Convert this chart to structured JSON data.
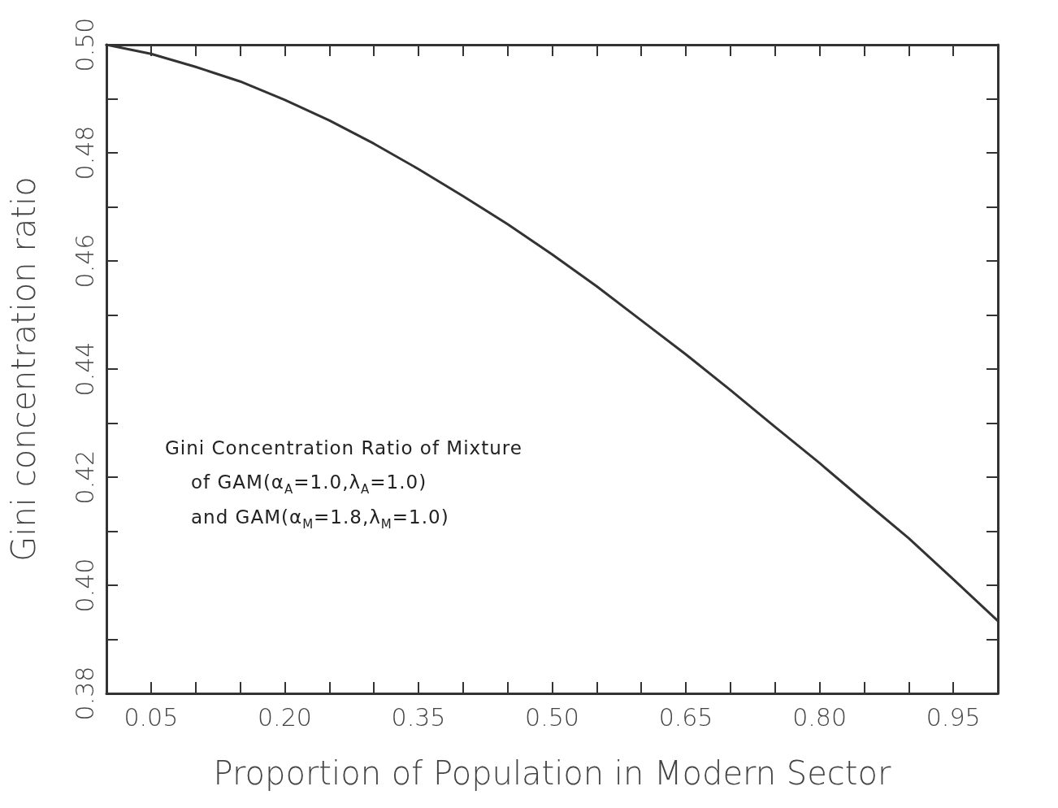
{
  "chart_data": {
    "type": "line",
    "xlabel": "Proportion of Population in Modern Sector",
    "ylabel": "Gini concentration ratio",
    "annotations": [
      "Gini Concentration Ratio of Mixture",
      "of GAM(α$_{A}$=1.0,λ$_{A}$=1.0)",
      "and GAM(α$_{M}$=1.8,λ$_{M}$=1.0)"
    ],
    "x": [
      0,
      0.05,
      0.1,
      0.15,
      0.2,
      0.25,
      0.3,
      0.35,
      0.4,
      0.45,
      0.5,
      0.55,
      0.6,
      0.65,
      0.7,
      0.75,
      0.8,
      0.85,
      0.9,
      0.95,
      1.0
    ],
    "series": [
      {
        "color": "#333333",
        "values": [
          0.5,
          0.4983,
          0.4959,
          0.4932,
          0.4898,
          0.486,
          0.4817,
          0.477,
          0.472,
          0.4668,
          0.4612,
          0.4553,
          0.449,
          0.4427,
          0.4361,
          0.4293,
          0.4226,
          0.4156,
          0.4087,
          0.4011,
          0.3934
        ]
      }
    ],
    "xlim": [
      0,
      1
    ],
    "xticks": [
      {
        "value": 0,
        "label": null
      },
      0.05,
      {
        "value": 0.1,
        "label": null
      },
      {
        "value": 0.15,
        "label": null
      },
      "0.20",
      {
        "value": 0.25,
        "label": null
      },
      {
        "value": 0.3,
        "label": null
      },
      0.35,
      {
        "value": 0.4,
        "label": null
      },
      {
        "value": 0.45,
        "label": null
      },
      "0.50",
      {
        "value": 0.55,
        "label": null
      },
      {
        "value": 0.6,
        "label": null
      },
      0.65,
      {
        "value": 0.7,
        "label": null
      },
      {
        "value": 0.75,
        "label": null
      },
      "0.80",
      {
        "value": 0.85,
        "label": null
      },
      {
        "value": 0.9,
        "label": null
      },
      0.95,
      {
        "value": 1.0,
        "label": null
      }
    ],
    "ylim": [
      0.38,
      0.5
    ],
    "yticks": [
      0.38,
      {
        "value": 0.39,
        "label": null
      },
      "0.40",
      {
        "value": 0.41,
        "label": null
      },
      0.42,
      {
        "value": 0.43,
        "label": null
      },
      0.44,
      {
        "value": 0.45,
        "label": null
      },
      0.46,
      {
        "value": 0.47,
        "label": null
      },
      0.48,
      {
        "value": 0.49,
        "label": null
      },
      "0.50"
    ],
    "grid": false,
    "marker": "none",
    "line_style": "solid"
  }
}
